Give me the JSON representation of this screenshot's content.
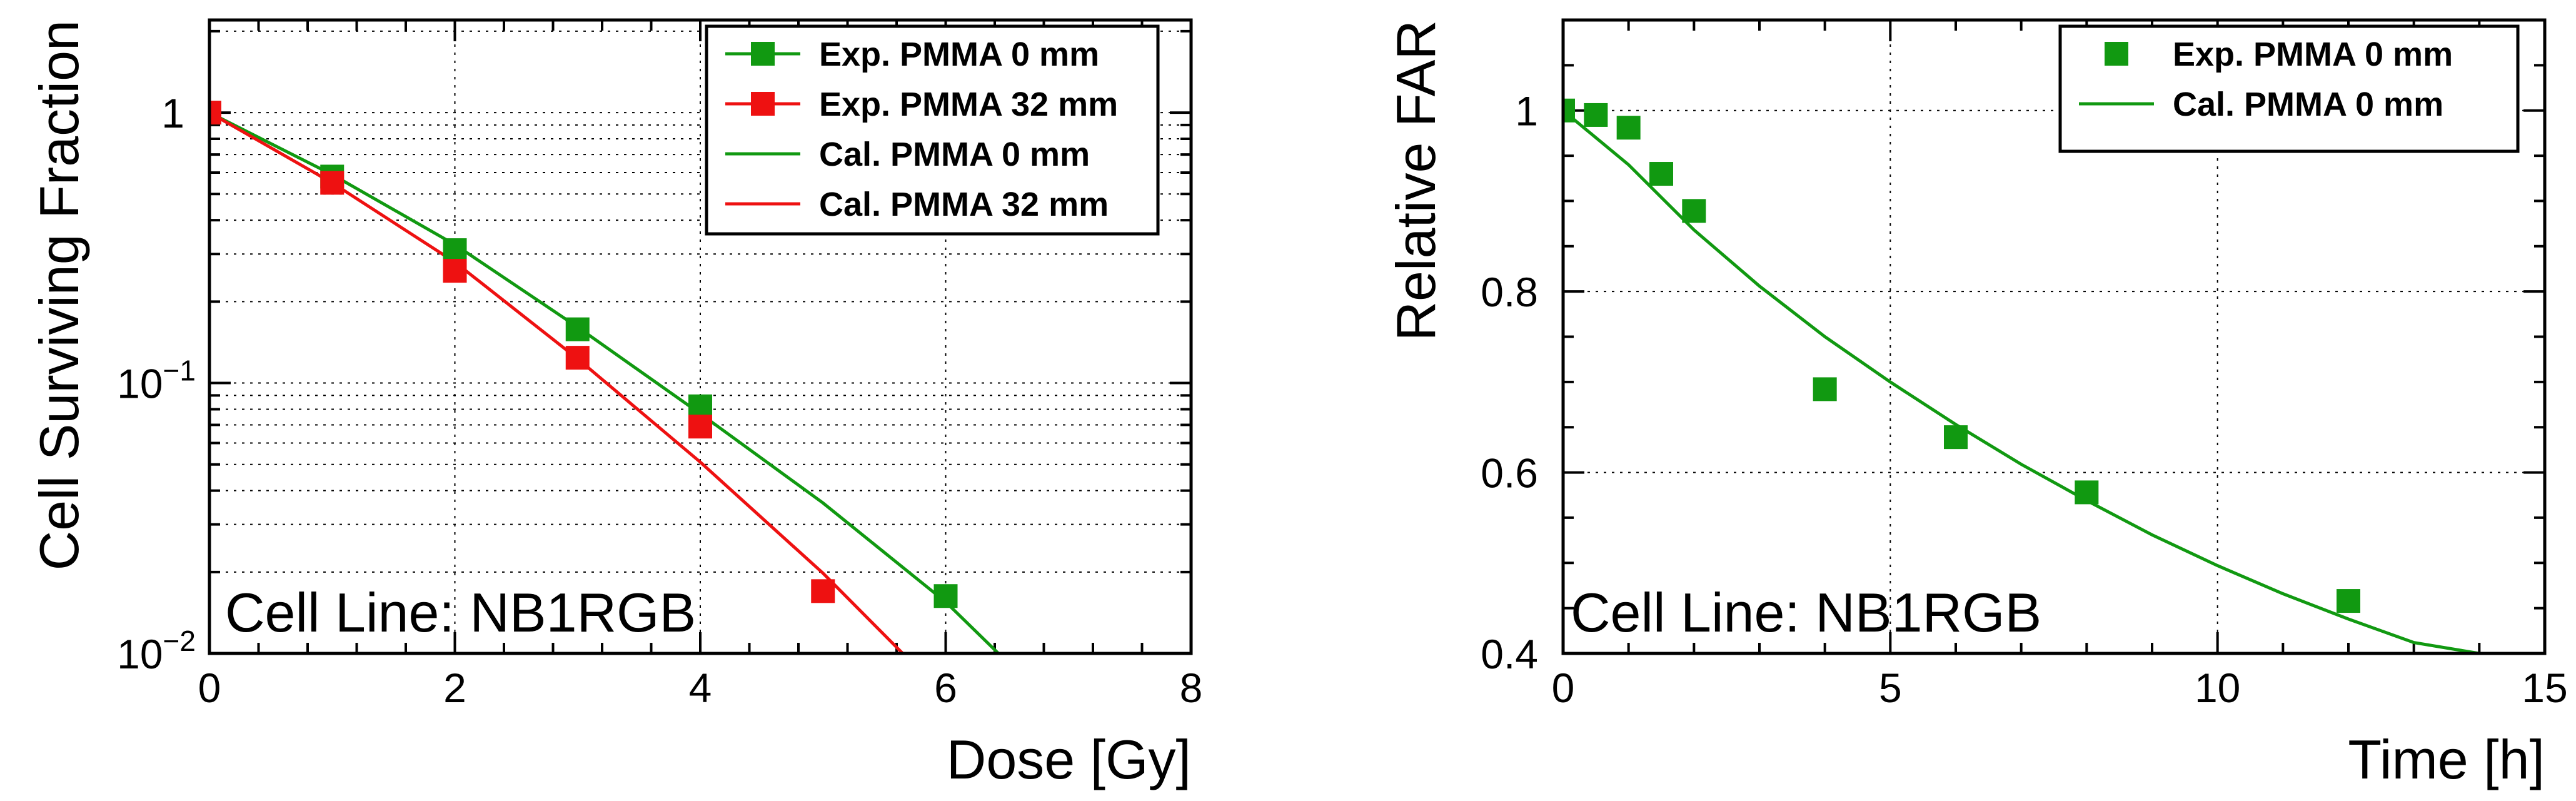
{
  "chart_data": [
    {
      "type": "scatter",
      "title": "",
      "xlabel": "Dose [Gy]",
      "ylabel": "Cell Surviving Fraction",
      "yscale": "log",
      "xlim": [
        0,
        8
      ],
      "ylim": [
        0.01,
        2.2
      ],
      "grid": true,
      "legend_position": "top-right",
      "x_ticks": [
        {
          "value": 0,
          "label": "0"
        },
        {
          "value": 2,
          "label": "2"
        },
        {
          "value": 4,
          "label": "4"
        },
        {
          "value": 6,
          "label": "6"
        },
        {
          "value": 8,
          "label": "8"
        }
      ],
      "y_ticks": [
        {
          "value": 1,
          "label": "1",
          "base": "",
          "exp": ""
        },
        {
          "value": 0.1,
          "label": "",
          "base": "10",
          "exp": "−1"
        },
        {
          "value": 0.01,
          "label": "",
          "base": "10",
          "exp": "−2"
        }
      ],
      "annotation": "Cell Line: NB1RGB",
      "series": [
        {
          "name": "Exp. PMMA 0 mm",
          "kind": "markers",
          "color": "#119911",
          "x": [
            0,
            1,
            2,
            3,
            4,
            6
          ],
          "y": [
            1.0,
            0.58,
            0.31,
            0.158,
            0.082,
            0.0163
          ]
        },
        {
          "name": "Exp. PMMA 32 mm",
          "kind": "markers",
          "color": "#ee1111",
          "x": [
            0,
            1,
            2,
            3,
            4,
            5
          ],
          "y": [
            1.0,
            0.55,
            0.26,
            0.124,
            0.069,
            0.017
          ]
        },
        {
          "name": "Cal. PMMA 0 mm",
          "kind": "line",
          "color": "#119911",
          "x": [
            0,
            1,
            2,
            3,
            4,
            5,
            6,
            6.43
          ],
          "y": [
            1.0,
            0.59,
            0.325,
            0.161,
            0.077,
            0.036,
            0.0155,
            0.01
          ]
        },
        {
          "name": "Cal. PMMA 32 mm",
          "kind": "line",
          "color": "#ee1111",
          "x": [
            0,
            1,
            2,
            3,
            4,
            5,
            5.65
          ],
          "y": [
            1.0,
            0.55,
            0.28,
            0.123,
            0.051,
            0.0198,
            0.01
          ]
        }
      ]
    },
    {
      "type": "scatter",
      "title": "",
      "xlabel": "Time [h]",
      "ylabel": "Relative FAR",
      "xlim": [
        0,
        15
      ],
      "ylim": [
        0.4,
        1.1
      ],
      "grid": true,
      "legend_position": "top-right",
      "x_ticks": [
        {
          "value": 0,
          "label": "0"
        },
        {
          "value": 5,
          "label": "5"
        },
        {
          "value": 10,
          "label": "10"
        },
        {
          "value": 15,
          "label": "15"
        }
      ],
      "y_ticks": [
        {
          "value": 1.0,
          "label": "1"
        },
        {
          "value": 0.8,
          "label": "0.8"
        },
        {
          "value": 0.6,
          "label": "0.6"
        },
        {
          "value": 0.4,
          "label": "0.4"
        }
      ],
      "annotation": "Cell Line: NB1RGB",
      "series": [
        {
          "name": "Exp. PMMA 0 mm",
          "kind": "markers",
          "color": "#119911",
          "x": [
            0,
            0.5,
            1,
            1.5,
            2,
            4,
            6,
            8,
            12
          ],
          "y": [
            1.0,
            0.995,
            0.981,
            0.93,
            0.889,
            0.692,
            0.639,
            0.578,
            0.458
          ]
        },
        {
          "name": "Cal. PMMA 0 mm",
          "kind": "line",
          "color": "#119911",
          "x": [
            0,
            1,
            2,
            3,
            4,
            5,
            6,
            7,
            8,
            9,
            10,
            11,
            12,
            13,
            14
          ],
          "y": [
            1.0,
            0.94,
            0.868,
            0.806,
            0.75,
            0.7,
            0.653,
            0.609,
            0.569,
            0.531,
            0.497,
            0.466,
            0.438,
            0.412,
            0.4
          ]
        }
      ]
    }
  ]
}
